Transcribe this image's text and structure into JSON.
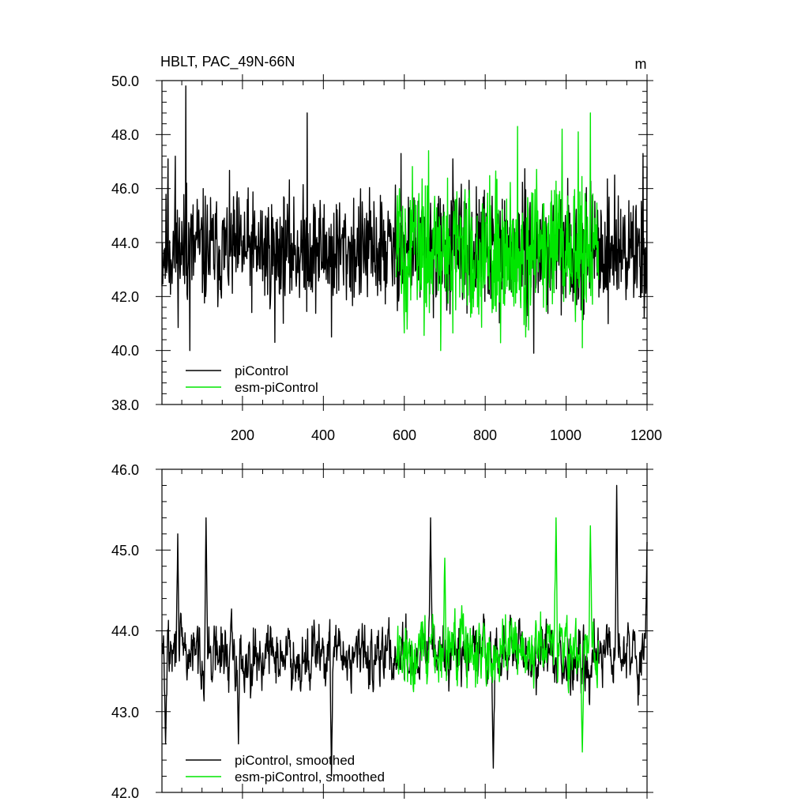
{
  "chart_data": [
    {
      "type": "line",
      "title": "HBLT, PAC_49N-66N",
      "units": "m",
      "xlim": [
        1,
        1200
      ],
      "ylim": [
        38.0,
        50.0
      ],
      "yticks": [
        "50.0",
        "48.0",
        "46.0",
        "44.0",
        "42.0",
        "40.0",
        "38.0"
      ],
      "xticks": [
        "200",
        "400",
        "600",
        "800",
        "1000",
        "1200"
      ],
      "legend_position": "bottom-left",
      "series": [
        {
          "name": "piControl",
          "color": "#000000",
          "x_range": [
            1,
            1200
          ],
          "baseline": 43.7,
          "spread": 1.6,
          "min": 39.9,
          "max": 49.8,
          "peaks": [
            [
              16,
              47.1
            ],
            [
              34,
              47.2
            ],
            [
              60,
              49.8
            ],
            [
              62,
              46.2
            ],
            [
              70,
              40.0
            ],
            [
              88,
              45.6
            ],
            [
              180,
              45.2
            ],
            [
              280,
              40.3
            ],
            [
              360,
              48.8
            ],
            [
              420,
              40.5
            ],
            [
              592,
              47.3
            ],
            [
              720,
              47.1
            ],
            [
              920,
              39.9
            ],
            [
              1120,
              46.5
            ],
            [
              1190,
              47.3
            ],
            [
              1200,
              46.8
            ]
          ]
        },
        {
          "name": "esm-piControl",
          "color": "#00e600",
          "x_range": [
            580,
            1080
          ],
          "baseline": 43.7,
          "spread": 2.0,
          "min": 40.0,
          "max": 48.8,
          "peaks": [
            [
              660,
              47.4
            ],
            [
              690,
              40.0
            ],
            [
              880,
              48.3
            ],
            [
              900,
              40.5
            ],
            [
              990,
              48.2
            ],
            [
              1030,
              48.1
            ],
            [
              1040,
              40.1
            ],
            [
              1060,
              48.8
            ]
          ]
        }
      ]
    },
    {
      "type": "line",
      "title": "",
      "xlim": [
        1,
        1200
      ],
      "ylim": [
        42.0,
        46.0
      ],
      "yticks": [
        "46.0",
        "45.0",
        "44.0",
        "43.0",
        "42.0"
      ],
      "legend_position": "bottom-left",
      "series": [
        {
          "name": "piControl, smoothed",
          "color": "#000000",
          "x_range": [
            1,
            1200
          ],
          "baseline": 43.7,
          "spread": 0.55,
          "min": 42.2,
          "max": 45.8,
          "peaks": [
            [
              10,
              42.6
            ],
            [
              40,
              45.2
            ],
            [
              110,
              45.4
            ],
            [
              190,
              42.6
            ],
            [
              420,
              42.2
            ],
            [
              665,
              45.4
            ],
            [
              820,
              42.3
            ],
            [
              1125,
              45.8
            ],
            [
              1200,
              45.1
            ]
          ]
        },
        {
          "name": "esm-piControl, smoothed",
          "color": "#00e600",
          "x_range": [
            580,
            1080
          ],
          "baseline": 43.75,
          "spread": 0.6,
          "min": 42.5,
          "max": 45.4,
          "peaks": [
            [
              700,
              44.9
            ],
            [
              975,
              45.4
            ],
            [
              1040,
              42.5
            ],
            [
              1060,
              45.3
            ]
          ]
        }
      ]
    }
  ]
}
